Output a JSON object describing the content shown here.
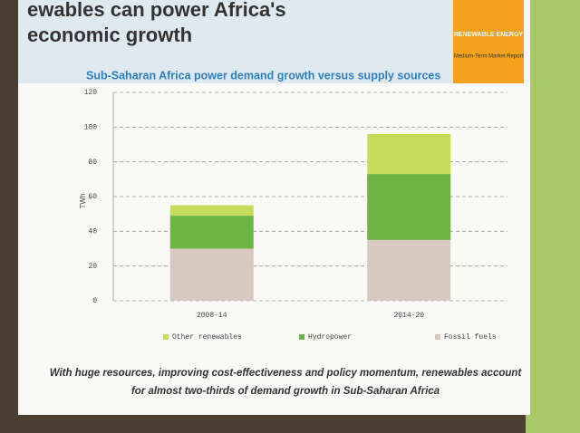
{
  "header": {
    "title_line1": "ewables can power Africa's",
    "title_line2": "economic growth",
    "logo_line1": "RENEWABLE ENERGY",
    "logo_line2": "Medium-Term Market Report"
  },
  "chart_data": {
    "type": "stacked_bar",
    "title": "Sub-Saharan Africa power demand growth versus supply sources",
    "y_label": "TWh",
    "categories": [
      "2008-14",
      "2014-20"
    ],
    "series": [
      {
        "name": "Other renewables",
        "color": "#c8dc5c",
        "values": [
          6,
          23
        ]
      },
      {
        "name": "Hydropower",
        "color": "#6cb443",
        "values": [
          19,
          38
        ]
      },
      {
        "name": "Fossil fuels",
        "color": "#d8c8c0",
        "values": [
          30,
          35
        ]
      }
    ],
    "ylim": [
      0,
      120
    ],
    "yticks": [
      0,
      20,
      40,
      60,
      80,
      100,
      120
    ],
    "grid": true,
    "legend": "bottom"
  },
  "footer": {
    "caption_line1": "With huge resources, improving cost-effectiveness and policy momentum, renewables account",
    "caption_line2": "for almost two-thirds of demand growth in Sub-Saharan Africa"
  }
}
